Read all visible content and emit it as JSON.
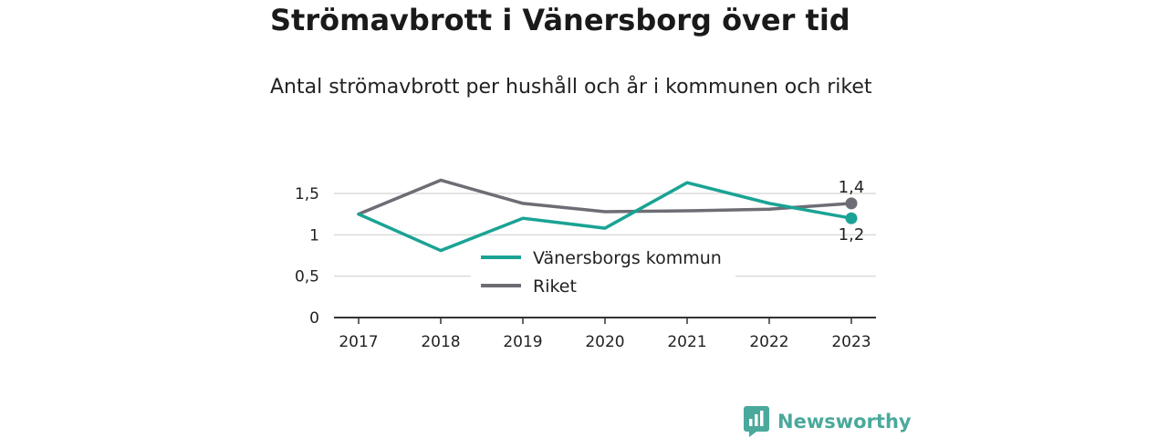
{
  "header": {
    "title": "Strömavbrott i Vänersborg över tid",
    "subtitle": "Antal strömavbrott per hushåll och år i kommunen och riket"
  },
  "brand": {
    "name": "Newsworthy",
    "icon": "newsworthy-logo-icon",
    "color": "#4aa99c"
  },
  "chart_data": {
    "type": "line",
    "x": [
      "2017",
      "2018",
      "2019",
      "2020",
      "2021",
      "2022",
      "2023"
    ],
    "series": [
      {
        "name": "Vänersborgs kommun",
        "color": "#1aa394",
        "values": [
          1.25,
          0.81,
          1.2,
          1.08,
          1.63,
          1.38,
          1.2
        ],
        "end_label": "1,2"
      },
      {
        "name": "Riket",
        "color": "#6e6d75",
        "values": [
          1.25,
          1.66,
          1.38,
          1.28,
          1.29,
          1.31,
          1.38
        ],
        "end_label": "1,4"
      }
    ],
    "ylim": [
      0,
      1.5
    ],
    "yticks": [
      {
        "value": 0,
        "label": "0"
      },
      {
        "value": 0.5,
        "label": "0,5"
      },
      {
        "value": 1,
        "label": "1"
      },
      {
        "value": 1.5,
        "label": "1,5"
      }
    ],
    "grid": true,
    "legend": "center",
    "xlabel": "",
    "ylabel": ""
  }
}
